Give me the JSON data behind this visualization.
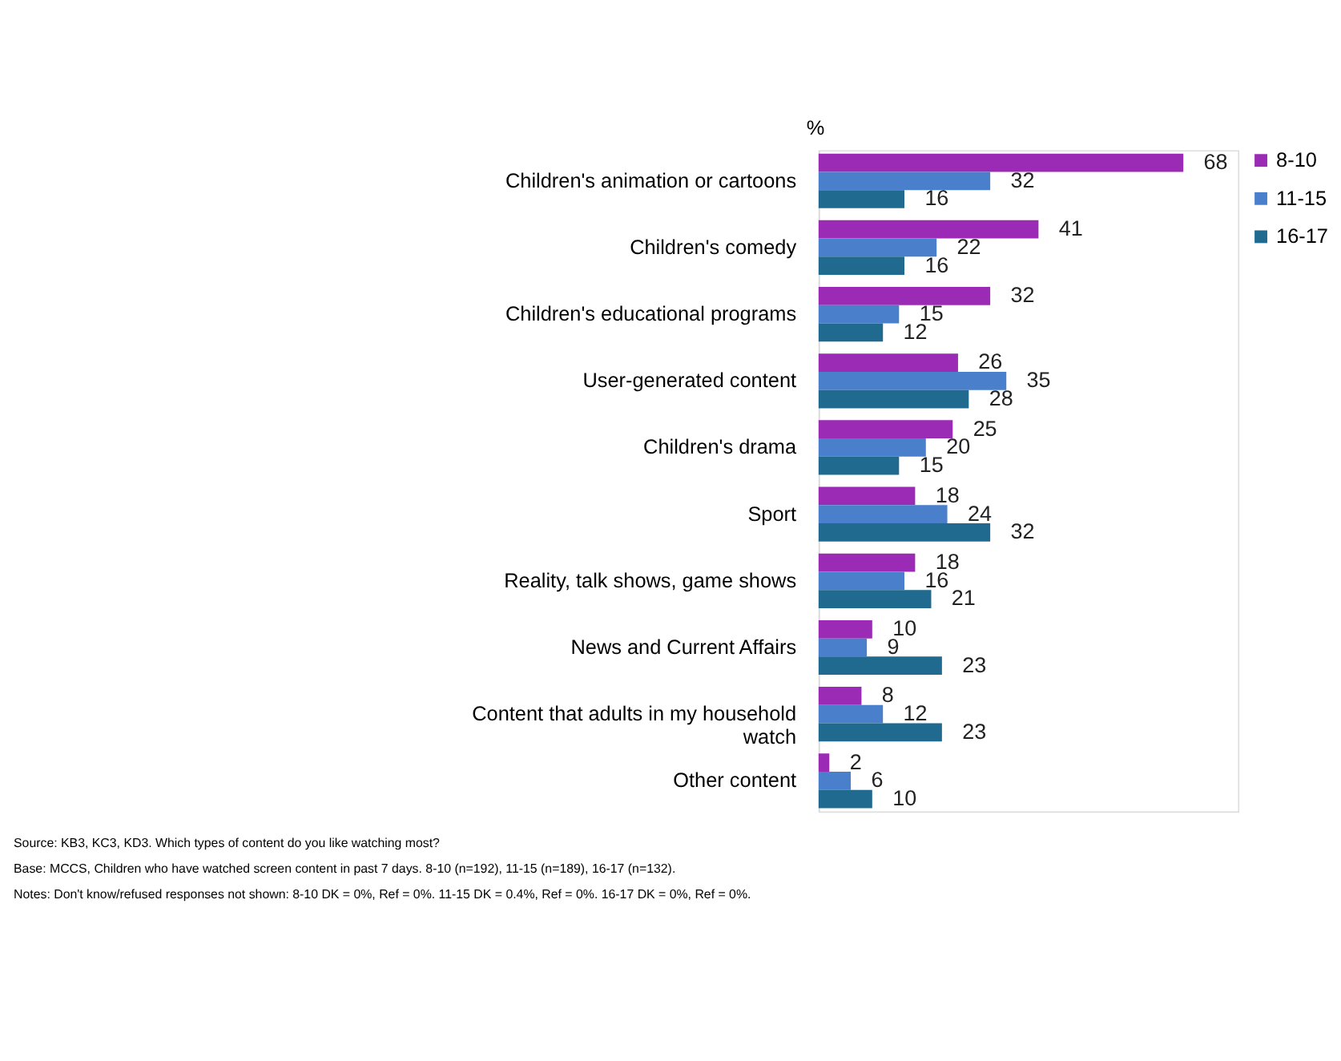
{
  "chart_data": {
    "type": "bar",
    "orientation": "horizontal",
    "xlabel": "%",
    "data_labels": true,
    "legend": "right",
    "grid": false,
    "categories": [
      "Children's animation or cartoons",
      "Children's comedy",
      "Children's educational programs",
      "User-generated content",
      "Children's drama",
      "Sport",
      "Reality, talk shows, game shows",
      "News and Current Affairs",
      "Content that adults in my household watch",
      "Other content"
    ],
    "series": [
      {
        "name": "8-10",
        "color": "#9b2bb5",
        "values": [
          68,
          41,
          32,
          26,
          25,
          18,
          18,
          10,
          8,
          2
        ]
      },
      {
        "name": "11-15",
        "color": "#4a7fcb",
        "values": [
          32,
          22,
          15,
          35,
          20,
          24,
          16,
          9,
          12,
          6
        ]
      },
      {
        "name": "16-17",
        "color": "#1f6a8e",
        "values": [
          16,
          16,
          12,
          28,
          15,
          32,
          21,
          23,
          23,
          10
        ]
      }
    ],
    "annotations": [
      "Source: KB3, KC3, KD3. Which types of content do you like watching most?",
      "Base: MCCS, Children who have watched screen content in past 7 days.  8-10 (n=192), 11-15 (n=189), 16-17 (n=132).",
      "Notes: Don't know/refused responses not shown: 8-10 DK = 0%, Ref = 0%. 11-15 DK = 0.4%, Ref = 0%. 16-17 DK = 0%, Ref = 0%."
    ]
  }
}
